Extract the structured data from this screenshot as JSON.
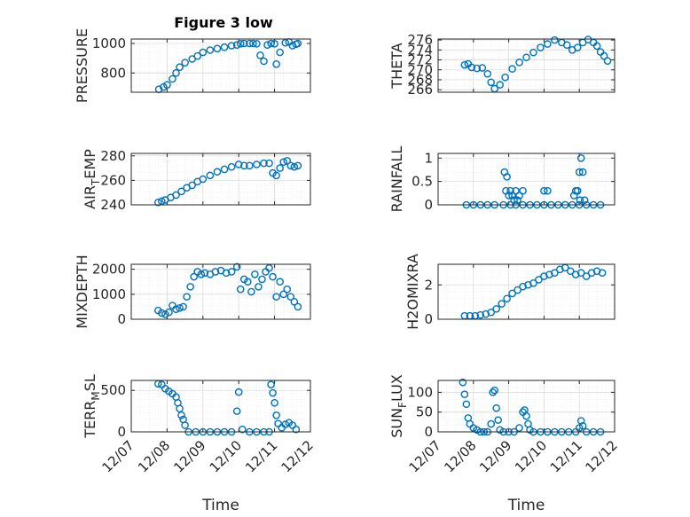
{
  "figure": {
    "title": "Figure 3 low",
    "series_color": "#0072bd",
    "x_tick_labels": [
      "12/07",
      "12/08",
      "12/09",
      "12/10",
      "12/11",
      "12/12"
    ]
  },
  "chart_data": [
    {
      "type": "scatter",
      "ylabel": "PRESSURE",
      "xlabel": "",
      "title": "Figure 3 low",
      "xlim": [
        0,
        5
      ],
      "ylim": [
        670,
        1030
      ],
      "yticks": [
        800,
        1000
      ],
      "yticklabels": [
        "800",
        "1000"
      ],
      "xticklabels": [],
      "grid": true,
      "legend": "none",
      "x": [
        0.77,
        0.9,
        1.0,
        1.15,
        1.25,
        1.35,
        1.5,
        1.7,
        1.85,
        2.0,
        2.2,
        2.4,
        2.6,
        2.8,
        2.95,
        3.05,
        3.15,
        3.3,
        3.4,
        3.5,
        3.6,
        3.7,
        3.8,
        3.9,
        4.0,
        4.05,
        4.15,
        4.3,
        4.4,
        4.5,
        4.6,
        4.65
      ],
      "y": [
        690,
        705,
        720,
        760,
        800,
        840,
        870,
        895,
        915,
        940,
        955,
        965,
        975,
        985,
        990,
        998,
        1000,
        1000,
        1000,
        998,
        920,
        880,
        990,
        1000,
        998,
        860,
        940,
        1005,
        1010,
        985,
        995,
        1000
      ]
    },
    {
      "type": "scatter",
      "ylabel": "THETA",
      "xlabel": "",
      "xlim": [
        0,
        5
      ],
      "ylim": [
        265.5,
        276.2
      ],
      "yticks": [
        266,
        268,
        270,
        272,
        274,
        276
      ],
      "yticklabels": [
        "266",
        "268",
        "270",
        "272",
        "274",
        "276"
      ],
      "xticklabels": [],
      "grid": true,
      "legend": "none",
      "x": [
        0.75,
        0.85,
        0.95,
        1.1,
        1.25,
        1.4,
        1.5,
        1.6,
        1.75,
        1.9,
        2.1,
        2.3,
        2.5,
        2.7,
        2.9,
        3.1,
        3.3,
        3.5,
        3.65,
        3.8,
        3.95,
        4.1,
        4.25,
        4.4,
        4.5,
        4.6,
        4.7,
        4.8
      ],
      "y": [
        271,
        271.2,
        270.5,
        270.3,
        270.4,
        269.2,
        267.5,
        266.2,
        267,
        268.5,
        270.2,
        271.5,
        272.5,
        273.5,
        274.5,
        275.2,
        276,
        275.5,
        275,
        274,
        274.5,
        275.5,
        276.1,
        275.5,
        274.8,
        273.6,
        272.8,
        271.8
      ]
    },
    {
      "type": "scatter",
      "ylabel": "AIR_TEMP",
      "xlabel": "",
      "xlim": [
        0,
        5
      ],
      "ylim": [
        240,
        282
      ],
      "yticks": [
        240,
        260,
        280
      ],
      "yticklabels": [
        "240",
        "260",
        "280"
      ],
      "xticklabels": [],
      "grid": true,
      "legend": "none",
      "x": [
        0.75,
        0.85,
        0.95,
        1.1,
        1.25,
        1.4,
        1.55,
        1.7,
        1.85,
        2.0,
        2.2,
        2.4,
        2.6,
        2.8,
        3.0,
        3.15,
        3.3,
        3.5,
        3.7,
        3.85,
        3.95,
        4.05,
        4.15,
        4.25,
        4.35,
        4.45,
        4.55,
        4.65
      ],
      "y": [
        242,
        243,
        244,
        246,
        248,
        251,
        254,
        256,
        259,
        261,
        264,
        267,
        269,
        271,
        273,
        272,
        272,
        273,
        274,
        274,
        266,
        264,
        270,
        275,
        276,
        272,
        271,
        272
      ]
    },
    {
      "type": "scatter",
      "ylabel": "RAINFALL",
      "xlabel": "",
      "xlim": [
        0,
        5
      ],
      "ylim": [
        0,
        1.1
      ],
      "yticks": [
        0,
        0.5,
        1
      ],
      "yticklabels": [
        "0",
        "0.5",
        "1"
      ],
      "xticklabels": [],
      "grid": true,
      "legend": "none",
      "x": [
        0.8,
        1.0,
        1.2,
        1.4,
        1.6,
        1.85,
        2.05,
        2.2,
        2.4,
        2.6,
        2.8,
        3.0,
        3.2,
        3.4,
        3.6,
        3.8,
        4.0,
        4.2,
        4.4,
        4.6,
        1.88,
        1.95,
        1.92,
        2.0,
        2.05,
        2.1,
        2.2,
        2.3,
        2.4,
        2.15,
        2.25,
        3.0,
        3.1,
        3.85,
        3.9,
        3.95,
        4.0,
        4.05,
        4.1,
        4.15,
        4.02
      ],
      "y": [
        0,
        0,
        0,
        0,
        0,
        0,
        0,
        0,
        0,
        0,
        0,
        0,
        0,
        0,
        0,
        0,
        0,
        0,
        0,
        0,
        0.7,
        0.6,
        0.3,
        0.2,
        0.3,
        0.2,
        0.3,
        0.2,
        0.3,
        0.1,
        0.1,
        0.3,
        0.3,
        0.2,
        0.3,
        0.3,
        0.7,
        1.0,
        0.7,
        0.1,
        0.1
      ]
    },
    {
      "type": "scatter",
      "ylabel": "MIXDEPTH",
      "xlabel": "",
      "xlim": [
        0,
        5
      ],
      "ylim": [
        0,
        2200
      ],
      "yticks": [
        0,
        1000,
        2000
      ],
      "yticklabels": [
        "0",
        "1000",
        "2000"
      ],
      "xticklabels": [],
      "grid": true,
      "legend": "none",
      "x": [
        0.75,
        0.85,
        0.95,
        1.05,
        1.15,
        1.25,
        1.35,
        1.45,
        1.55,
        1.65,
        1.75,
        1.85,
        1.95,
        2.05,
        2.2,
        2.35,
        2.5,
        2.65,
        2.8,
        2.95,
        3.05,
        3.15,
        3.25,
        3.35,
        3.45,
        3.55,
        3.65,
        3.75,
        3.85,
        3.95,
        4.05,
        4.15,
        4.25,
        4.35,
        4.45,
        4.55,
        4.65
      ],
      "y": [
        350,
        250,
        200,
        280,
        550,
        400,
        450,
        500,
        900,
        1300,
        1700,
        1900,
        1800,
        1850,
        1800,
        1900,
        1950,
        1850,
        1900,
        2100,
        1200,
        1600,
        1500,
        1100,
        1800,
        1300,
        1600,
        1900,
        2050,
        1700,
        900,
        1500,
        1000,
        1200,
        900,
        700,
        500
      ]
    },
    {
      "type": "scatter",
      "ylabel": "H2OMIXRA",
      "xlabel": "",
      "xlim": [
        0,
        5
      ],
      "ylim": [
        0,
        3.2
      ],
      "yticks": [
        0,
        2
      ],
      "yticklabels": [
        "0",
        "2"
      ],
      "xticklabels": [],
      "grid": true,
      "legend": "none",
      "x": [
        0.75,
        0.9,
        1.05,
        1.2,
        1.35,
        1.5,
        1.65,
        1.8,
        1.95,
        2.1,
        2.25,
        2.4,
        2.55,
        2.7,
        2.85,
        3.0,
        3.15,
        3.3,
        3.45,
        3.6,
        3.75,
        3.9,
        4.05,
        4.2,
        4.35,
        4.5,
        4.65
      ],
      "y": [
        0.2,
        0.2,
        0.2,
        0.25,
        0.3,
        0.4,
        0.6,
        0.9,
        1.2,
        1.5,
        1.7,
        1.9,
        2.0,
        2.1,
        2.3,
        2.5,
        2.6,
        2.7,
        2.9,
        3.0,
        2.8,
        2.6,
        2.7,
        2.5,
        2.7,
        2.8,
        2.7
      ]
    },
    {
      "type": "scatter",
      "ylabel": "TERR_MSL",
      "xlabel": "Time",
      "xlim": [
        0,
        5
      ],
      "ylim": [
        0,
        620
      ],
      "yticks": [
        0,
        500
      ],
      "yticklabels": [
        "0",
        "500"
      ],
      "xticklabels": [
        "12/07",
        "12/08",
        "12/09",
        "12/10",
        "12/11",
        "12/12"
      ],
      "grid": true,
      "legend": "none",
      "x": [
        0.75,
        0.85,
        0.95,
        1.05,
        1.15,
        1.25,
        1.3,
        1.35,
        1.4,
        1.45,
        1.5,
        1.6,
        1.8,
        2.0,
        2.2,
        2.4,
        2.6,
        2.8,
        2.95,
        3.0,
        3.1,
        3.3,
        3.5,
        3.7,
        3.85,
        3.9,
        3.95,
        4.0,
        4.05,
        4.1,
        4.2,
        4.3,
        4.4,
        4.5,
        4.6
      ],
      "y": [
        580,
        570,
        520,
        490,
        460,
        420,
        350,
        280,
        200,
        150,
        80,
        0,
        0,
        0,
        0,
        0,
        0,
        0,
        250,
        480,
        30,
        0,
        0,
        0,
        0,
        570,
        470,
        350,
        200,
        100,
        50,
        90,
        110,
        80,
        30
      ]
    },
    {
      "type": "scatter",
      "ylabel": "SUN_FLUX",
      "xlabel": "Time",
      "xlim": [
        0,
        5
      ],
      "ylim": [
        0,
        130
      ],
      "yticks": [
        0,
        50,
        100
      ],
      "yticklabels": [
        "0",
        "50",
        "100"
      ],
      "xticklabels": [
        "12/07",
        "12/08",
        "12/09",
        "12/10",
        "12/11",
        "12/12"
      ],
      "grid": true,
      "legend": "none",
      "x": [
        0.7,
        0.75,
        0.8,
        0.85,
        0.9,
        1.0,
        1.1,
        1.2,
        1.3,
        1.4,
        1.5,
        1.55,
        1.6,
        1.65,
        1.7,
        1.75,
        1.85,
        2.0,
        2.15,
        2.3,
        2.4,
        2.45,
        2.5,
        2.55,
        2.6,
        2.7,
        2.9,
        3.1,
        3.3,
        3.5,
        3.7,
        3.9,
        4.0,
        4.05,
        4.1,
        4.2,
        4.4,
        4.6
      ],
      "y": [
        125,
        95,
        70,
        35,
        20,
        10,
        5,
        0,
        0,
        0,
        20,
        100,
        105,
        60,
        30,
        5,
        0,
        0,
        0,
        10,
        50,
        55,
        40,
        20,
        5,
        0,
        0,
        0,
        0,
        0,
        0,
        0,
        10,
        28,
        15,
        0,
        0,
        0
      ]
    }
  ]
}
